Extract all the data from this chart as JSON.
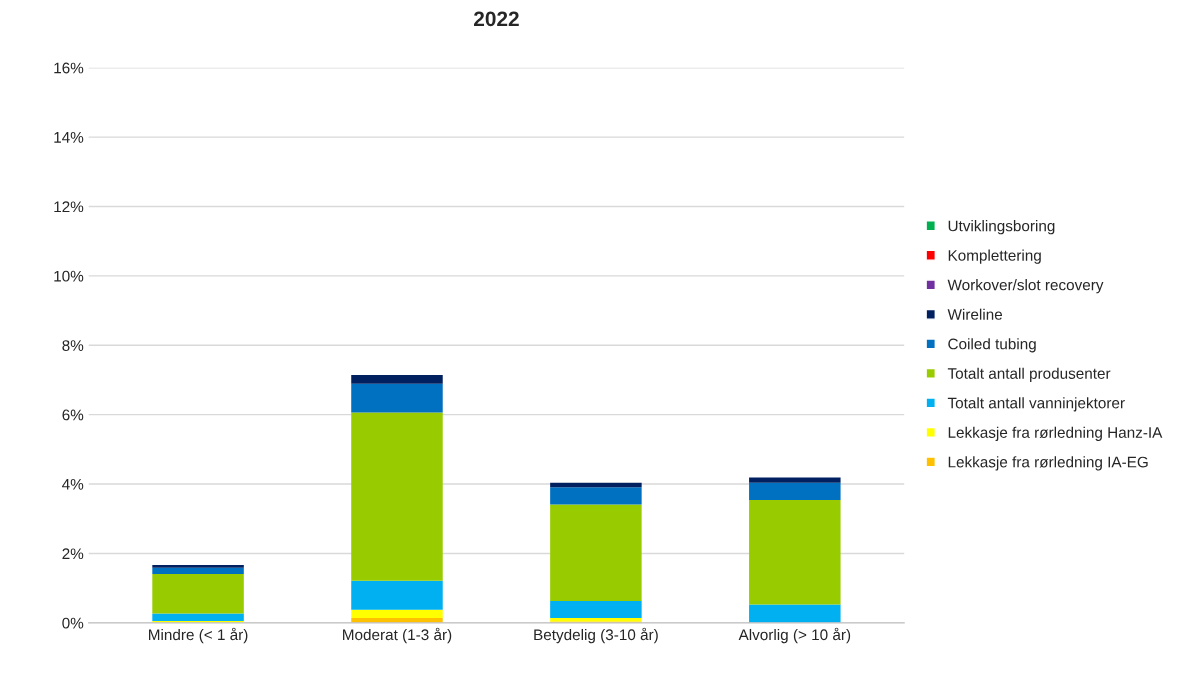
{
  "chart_data": {
    "type": "bar",
    "title": "2022",
    "stacked": true,
    "categories": [
      "Mindre (< 1 år)",
      "Moderat (1-3 år)",
      "Betydelig (3-10 år)",
      "Alvorlig (> 10 år)"
    ],
    "series": [
      {
        "name": "Lekkasje fra rørledning IA-EG",
        "color": "#ffc000",
        "values": [
          0,
          0.14,
          0.04,
          0
        ]
      },
      {
        "name": "Lekkasje fra rørledning Hanz-IA",
        "color": "#ffff00",
        "values": [
          0.05,
          0.24,
          0.1,
          0
        ]
      },
      {
        "name": "Totalt antall vanninjektorer",
        "color": "#00b0f0",
        "values": [
          0.22,
          0.83,
          0.49,
          0.53
        ]
      },
      {
        "name": "Totalt antall produsenter",
        "color": "#99cc00",
        "values": [
          1.14,
          4.85,
          2.78,
          3.01
        ]
      },
      {
        "name": "Coiled tubing",
        "color": "#0070c0",
        "values": [
          0.18,
          0.83,
          0.5,
          0.5
        ]
      },
      {
        "name": "Wireline",
        "color": "#002060",
        "values": [
          0.08,
          0.25,
          0.13,
          0.15
        ]
      },
      {
        "name": "Workover/slot recovery",
        "color": "#7030a0",
        "values": [
          0,
          0,
          0,
          0
        ]
      },
      {
        "name": "Komplettering",
        "color": "#ff0000",
        "values": [
          0,
          0,
          0,
          0
        ]
      },
      {
        "name": "Utviklingsboring",
        "color": "#00b050",
        "values": [
          0,
          0,
          0,
          0
        ]
      }
    ],
    "ylim": [
      0,
      16
    ],
    "yticks": [
      {
        "value": 0,
        "label": "0%"
      },
      {
        "value": 2,
        "label": "2%"
      },
      {
        "value": 4,
        "label": "4%"
      },
      {
        "value": 6,
        "label": "6%"
      },
      {
        "value": 8,
        "label": "8%"
      },
      {
        "value": 10,
        "label": "10%"
      },
      {
        "value": 12,
        "label": "12%"
      },
      {
        "value": 14,
        "label": "14%"
      },
      {
        "value": 16,
        "label": "16%"
      }
    ],
    "grid": "y",
    "legend": "right"
  }
}
